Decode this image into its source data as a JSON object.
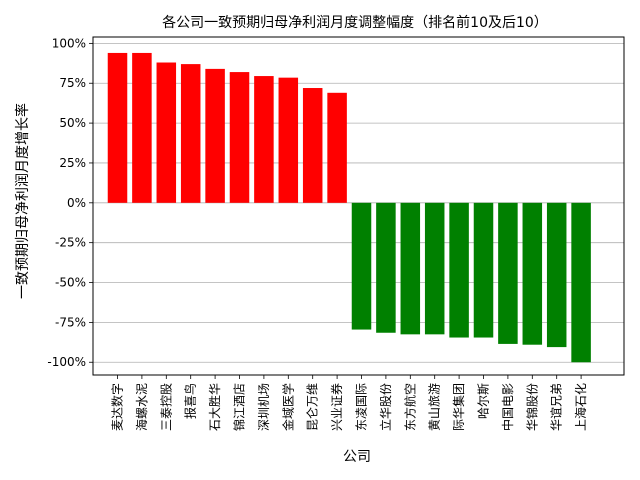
{
  "chart_data": {
    "type": "bar",
    "title": "各公司一致预期归母净利润月度调整幅度（排名前10及后10）",
    "xlabel": "公司",
    "ylabel": "一致预期归母净利润月度增长率",
    "ylim": [
      -1.08,
      1.04
    ],
    "yticks": [
      1.0,
      0.75,
      0.5,
      0.25,
      0.0,
      -0.25,
      -0.5,
      -0.75,
      -1.0
    ],
    "ytick_labels": [
      "100%",
      "75%",
      "50%",
      "25%",
      "0%",
      "-25%",
      "-50%",
      "-75%",
      "-100%"
    ],
    "grid": "y",
    "positive_color": "#ff0000",
    "negative_color": "#008000",
    "categories": [
      "麦达数字",
      "海螺水泥",
      "三泰控股",
      "报喜鸟",
      "石大胜华",
      "锦江酒店",
      "深圳机场",
      "金域医学",
      "昆仑万维",
      "兴业证券",
      "东凌国际",
      "立华股份",
      "东方航空",
      "黄山旅游",
      "际华集团",
      "哈尔斯",
      "中国电影",
      "华锦股份",
      "华谊兄弟",
      "上海石化"
    ],
    "values": [
      0.94,
      0.94,
      0.88,
      0.87,
      0.84,
      0.82,
      0.795,
      0.785,
      0.72,
      0.69,
      -0.795,
      -0.815,
      -0.825,
      -0.825,
      -0.845,
      -0.845,
      -0.885,
      -0.89,
      -0.905,
      -1.0
    ]
  }
}
